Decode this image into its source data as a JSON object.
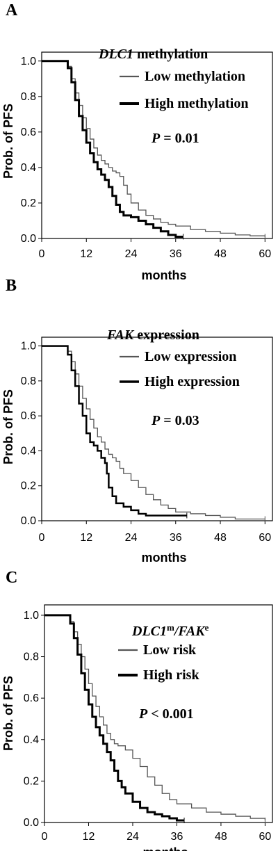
{
  "chart_data": [
    {
      "type": "line",
      "panel_label": "A",
      "title_italic": "DLC1",
      "title_rest": " methylation",
      "title_sup1": "",
      "title_mid": "",
      "title_sup2": "",
      "xlabel": "months",
      "ylabel": "Prob. of PFS",
      "xlim": [
        0,
        62
      ],
      "ylim": [
        0,
        1.05
      ],
      "x_ticks": [
        "0",
        "12",
        "24",
        "36",
        "48",
        "60"
      ],
      "y_ticks": [
        "0.0",
        "0.2",
        "0.4",
        "0.6",
        "0.8",
        "1.0"
      ],
      "p_italic": "P",
      "p_rest": " = 0.01",
      "series": [
        {
          "name": "Low methylation",
          "color": "#555555",
          "width": 1.3,
          "x": [
            0,
            6,
            7,
            8,
            9,
            10,
            11,
            12,
            13,
            14,
            15,
            16,
            17,
            18,
            19,
            20,
            21,
            22,
            23,
            24,
            26,
            28,
            30,
            32,
            34,
            36,
            40,
            44,
            48,
            52,
            56,
            60
          ],
          "y": [
            1.0,
            1.0,
            0.97,
            0.9,
            0.82,
            0.75,
            0.68,
            0.62,
            0.56,
            0.51,
            0.47,
            0.44,
            0.42,
            0.4,
            0.38,
            0.37,
            0.35,
            0.3,
            0.25,
            0.2,
            0.16,
            0.13,
            0.11,
            0.09,
            0.08,
            0.07,
            0.05,
            0.04,
            0.03,
            0.02,
            0.015,
            0.01
          ]
        },
        {
          "name": "High methylation",
          "color": "#000000",
          "width": 3,
          "x": [
            0,
            6,
            7,
            8,
            9,
            10,
            11,
            12,
            13,
            14,
            15,
            16,
            17,
            18,
            19,
            20,
            21,
            22,
            24,
            26,
            28,
            30,
            32,
            34,
            36,
            38
          ],
          "y": [
            1.0,
            1.0,
            0.96,
            0.88,
            0.78,
            0.69,
            0.61,
            0.54,
            0.48,
            0.43,
            0.39,
            0.36,
            0.33,
            0.29,
            0.24,
            0.19,
            0.15,
            0.13,
            0.12,
            0.1,
            0.08,
            0.06,
            0.04,
            0.02,
            0.01,
            0.01
          ]
        }
      ]
    },
    {
      "type": "line",
      "panel_label": "B",
      "title_italic": "FAK",
      "title_rest": " expression",
      "title_sup1": "",
      "title_mid": "",
      "title_sup2": "",
      "xlabel": "months",
      "ylabel": "Prob. of PFS",
      "xlim": [
        0,
        62
      ],
      "ylim": [
        0,
        1.05
      ],
      "x_ticks": [
        "0",
        "12",
        "24",
        "36",
        "48",
        "60"
      ],
      "y_ticks": [
        "0.0",
        "0.2",
        "0.4",
        "0.6",
        "0.8",
        "1.0"
      ],
      "p_italic": "P",
      "p_rest": " = 0.03",
      "series": [
        {
          "name": "Low expression",
          "color": "#555555",
          "width": 1.3,
          "x": [
            0,
            6,
            7,
            8,
            9,
            10,
            11,
            12,
            13,
            14,
            15,
            16,
            17,
            18,
            19,
            20,
            21,
            22,
            24,
            26,
            28,
            30,
            32,
            34,
            36,
            40,
            44,
            48,
            52,
            56,
            60
          ],
          "y": [
            1.0,
            1.0,
            0.97,
            0.91,
            0.84,
            0.77,
            0.7,
            0.64,
            0.58,
            0.53,
            0.48,
            0.45,
            0.41,
            0.38,
            0.36,
            0.34,
            0.3,
            0.27,
            0.23,
            0.19,
            0.15,
            0.12,
            0.09,
            0.07,
            0.05,
            0.04,
            0.03,
            0.02,
            0.01,
            0.01,
            0.01
          ]
        },
        {
          "name": "High expression",
          "color": "#000000",
          "width": 2.5,
          "x": [
            0,
            6,
            7,
            8,
            9,
            10,
            11,
            12,
            13,
            14,
            15,
            16,
            17,
            17.5,
            18,
            19,
            20,
            22,
            24,
            26,
            28,
            30,
            32,
            34,
            36,
            38,
            39
          ],
          "y": [
            1.0,
            1.0,
            0.95,
            0.86,
            0.77,
            0.67,
            0.6,
            0.5,
            0.45,
            0.43,
            0.4,
            0.36,
            0.33,
            0.27,
            0.19,
            0.14,
            0.1,
            0.08,
            0.06,
            0.04,
            0.03,
            0.03,
            0.03,
            0.03,
            0.03,
            0.03,
            0.03
          ]
        }
      ]
    },
    {
      "type": "line",
      "panel_label": "C",
      "title_italic": "DLC1",
      "title_rest": "",
      "title_sup1": "m",
      "title_mid": "/FAK",
      "title_sup2": "e",
      "xlabel": "months",
      "ylabel": "Prob. of PFS",
      "xlim": [
        0,
        62
      ],
      "ylim": [
        0,
        1.05
      ],
      "x_ticks": [
        "0",
        "12",
        "24",
        "36",
        "48",
        "60"
      ],
      "y_ticks": [
        "0.0",
        "0.2",
        "0.4",
        "0.6",
        "0.8",
        "1.0"
      ],
      "p_italic": "P",
      "p_rest": " < 0.001",
      "series": [
        {
          "name": "Low risk",
          "color": "#555555",
          "width": 1.3,
          "x": [
            0,
            6,
            7,
            8,
            9,
            10,
            11,
            12,
            13,
            14,
            15,
            16,
            17,
            18,
            19,
            20,
            22,
            24,
            26,
            28,
            30,
            32,
            34,
            36,
            40,
            44,
            48,
            52,
            56,
            60
          ],
          "y": [
            1.0,
            1.0,
            0.97,
            0.92,
            0.86,
            0.8,
            0.74,
            0.67,
            0.61,
            0.56,
            0.51,
            0.47,
            0.43,
            0.4,
            0.38,
            0.37,
            0.35,
            0.31,
            0.27,
            0.22,
            0.18,
            0.14,
            0.11,
            0.09,
            0.07,
            0.05,
            0.04,
            0.03,
            0.02,
            0.01
          ]
        },
        {
          "name": "High risk",
          "color": "#000000",
          "width": 3,
          "x": [
            0,
            6,
            7,
            8,
            9,
            10,
            11,
            12,
            13,
            14,
            15,
            16,
            17,
            18,
            19,
            20,
            21,
            22,
            24,
            26,
            28,
            30,
            32,
            34,
            36,
            38
          ],
          "y": [
            1.0,
            1.0,
            0.96,
            0.89,
            0.81,
            0.72,
            0.64,
            0.57,
            0.51,
            0.46,
            0.42,
            0.38,
            0.34,
            0.3,
            0.25,
            0.2,
            0.17,
            0.14,
            0.1,
            0.07,
            0.05,
            0.04,
            0.03,
            0.02,
            0.01,
            0.01
          ]
        }
      ]
    }
  ]
}
